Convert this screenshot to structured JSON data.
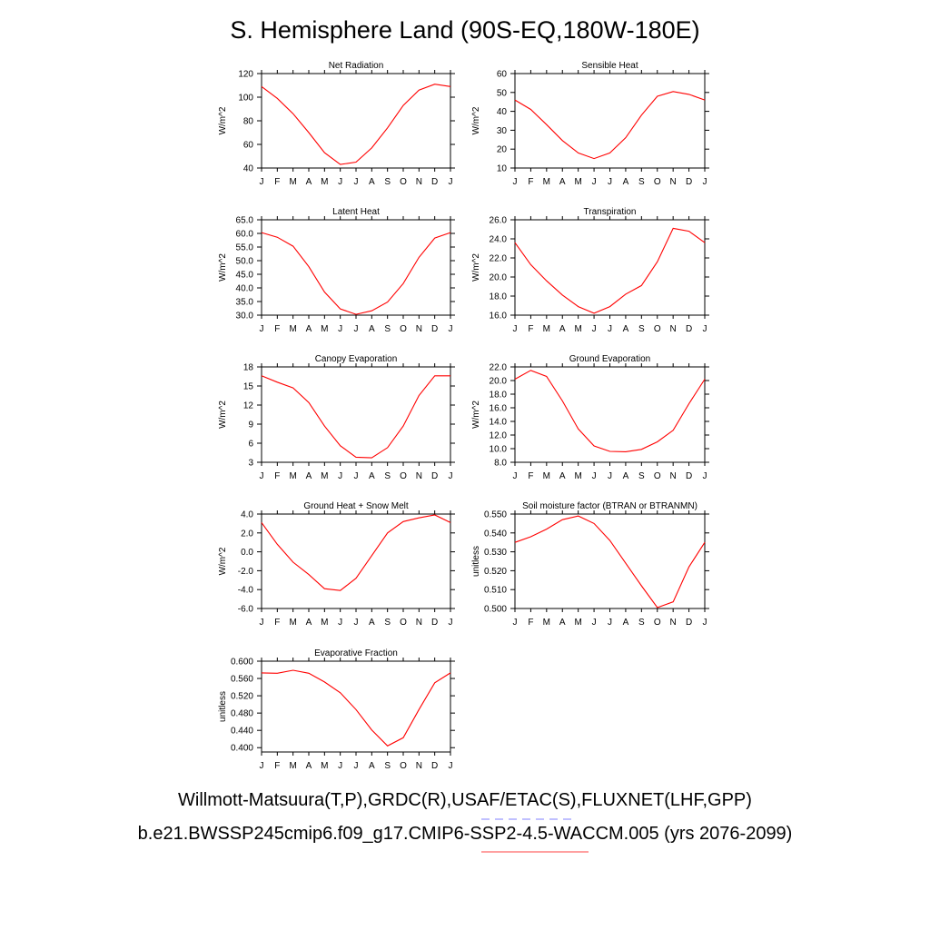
{
  "page": {
    "title": "S. Hemisphere Land (90S-EQ,180W-180E)",
    "footer_obs": "Willmott-Matsuura(T,P),GRDC(R),USAF/ETAC(S),FLUXNET(LHF,GPP)",
    "footer_case": "b.e21.BWSSP245cmip6.f09_g17.CMIP6-SSP2-4.5-WACCM.005 (yrs 2076-2099)",
    "colors": {
      "series": "#ff0000",
      "axis": "#000000",
      "obs_dash": "#8080ff",
      "case_line": "#ff4040"
    }
  },
  "chart_data": [
    {
      "type": "line",
      "title": "Net Radiation",
      "ylabel": "W/m^2",
      "categories": [
        "J",
        "F",
        "M",
        "A",
        "M",
        "J",
        "J",
        "A",
        "S",
        "O",
        "N",
        "D",
        "J"
      ],
      "yticks": [
        "40",
        "60",
        "80",
        "100",
        "120"
      ],
      "ylim": [
        40,
        120
      ],
      "values": [
        109,
        99,
        86,
        70,
        53,
        43,
        45,
        57,
        74,
        93,
        106,
        111,
        109
      ]
    },
    {
      "type": "line",
      "title": "Sensible Heat",
      "ylabel": "W/m^2",
      "categories": [
        "J",
        "F",
        "M",
        "A",
        "M",
        "J",
        "J",
        "A",
        "S",
        "O",
        "N",
        "D",
        "J"
      ],
      "yticks": [
        "10",
        "20",
        "30",
        "40",
        "50",
        "60"
      ],
      "ylim": [
        10,
        60
      ],
      "values": [
        46,
        41,
        33,
        24.5,
        18,
        15,
        18,
        26,
        38,
        48,
        50.5,
        49,
        46
      ]
    },
    {
      "type": "line",
      "title": "Latent Heat",
      "ylabel": "W/m^2",
      "categories": [
        "J",
        "F",
        "M",
        "A",
        "M",
        "J",
        "J",
        "A",
        "S",
        "O",
        "N",
        "D",
        "J"
      ],
      "yticks": [
        "30.0",
        "35.0",
        "40.0",
        "45.0",
        "50.0",
        "55.0",
        "60.0",
        "65.0"
      ],
      "ylim": [
        30,
        65
      ],
      "values": [
        60.3,
        58.6,
        55.3,
        47.8,
        38.5,
        32.3,
        30.3,
        31.6,
        34.8,
        41.6,
        51.2,
        58.3,
        60.3
      ]
    },
    {
      "type": "line",
      "title": "Transpiration",
      "ylabel": "W/m^2",
      "categories": [
        "J",
        "F",
        "M",
        "A",
        "M",
        "J",
        "J",
        "A",
        "S",
        "O",
        "N",
        "D",
        "J"
      ],
      "yticks": [
        "16.0",
        "18.0",
        "20.0",
        "22.0",
        "24.0",
        "26.0"
      ],
      "ylim": [
        16,
        26
      ],
      "values": [
        23.6,
        21.3,
        19.6,
        18.1,
        16.9,
        16.2,
        16.9,
        18.2,
        19.1,
        21.6,
        25.1,
        24.8,
        23.6
      ]
    },
    {
      "type": "line",
      "title": "Canopy Evaporation",
      "ylabel": "W/m^2",
      "categories": [
        "J",
        "F",
        "M",
        "A",
        "M",
        "J",
        "J",
        "A",
        "S",
        "O",
        "N",
        "D",
        "J"
      ],
      "yticks": [
        "3",
        "6",
        "9",
        "12",
        "15",
        "18"
      ],
      "ylim": [
        3,
        18
      ],
      "values": [
        16.6,
        15.6,
        14.7,
        12.4,
        8.7,
        5.6,
        3.8,
        3.7,
        5.3,
        8.7,
        13.5,
        16.6,
        16.6
      ]
    },
    {
      "type": "line",
      "title": "Ground Evaporation",
      "ylabel": "W/m^2",
      "categories": [
        "J",
        "F",
        "M",
        "A",
        "M",
        "J",
        "J",
        "A",
        "S",
        "O",
        "N",
        "D",
        "J"
      ],
      "yticks": [
        "8.0",
        "10.0",
        "12.0",
        "14.0",
        "16.0",
        "18.0",
        "20.0",
        "22.0"
      ],
      "ylim": [
        8,
        22
      ],
      "values": [
        20.2,
        21.5,
        20.6,
        17.0,
        12.9,
        10.4,
        9.6,
        9.55,
        9.9,
        11.0,
        12.7,
        16.6,
        20.2
      ]
    },
    {
      "type": "line",
      "title": "Ground Heat + Snow Melt",
      "ylabel": "W/m^2",
      "categories": [
        "J",
        "F",
        "M",
        "A",
        "M",
        "J",
        "J",
        "A",
        "S",
        "O",
        "N",
        "D",
        "J"
      ],
      "yticks": [
        "-6.0",
        "-4.0",
        "-2.0",
        "0.0",
        "2.0",
        "4.0"
      ],
      "ylim": [
        -6,
        4
      ],
      "values": [
        3.1,
        0.8,
        -1.1,
        -2.4,
        -3.9,
        -4.1,
        -2.8,
        -0.4,
        2.0,
        3.2,
        3.6,
        3.9,
        3.1
      ]
    },
    {
      "type": "line",
      "title": "Soil moisture factor (BTRAN or BTRANMN)",
      "ylabel": "unitless",
      "categories": [
        "J",
        "F",
        "M",
        "A",
        "M",
        "J",
        "J",
        "A",
        "S",
        "O",
        "N",
        "D",
        "J"
      ],
      "yticks": [
        "0.500",
        "0.510",
        "0.520",
        "0.530",
        "0.540",
        "0.550"
      ],
      "ylim": [
        0.5,
        0.55
      ],
      "values": [
        0.535,
        0.538,
        0.542,
        0.547,
        0.549,
        0.545,
        0.536,
        0.524,
        0.512,
        0.5005,
        0.5035,
        0.522,
        0.535
      ]
    },
    {
      "type": "line",
      "title": "Evaporative Fraction",
      "ylabel": "unitless",
      "categories": [
        "J",
        "F",
        "M",
        "A",
        "M",
        "J",
        "J",
        "A",
        "S",
        "O",
        "N",
        "D",
        "J"
      ],
      "yticks": [
        "0.400",
        "0.440",
        "0.480",
        "0.520",
        "0.560",
        "0.600"
      ],
      "ylim": [
        0.39,
        0.6
      ],
      "values": [
        0.573,
        0.572,
        0.579,
        0.572,
        0.552,
        0.527,
        0.488,
        0.441,
        0.404,
        0.423,
        0.488,
        0.55,
        0.573
      ]
    }
  ]
}
